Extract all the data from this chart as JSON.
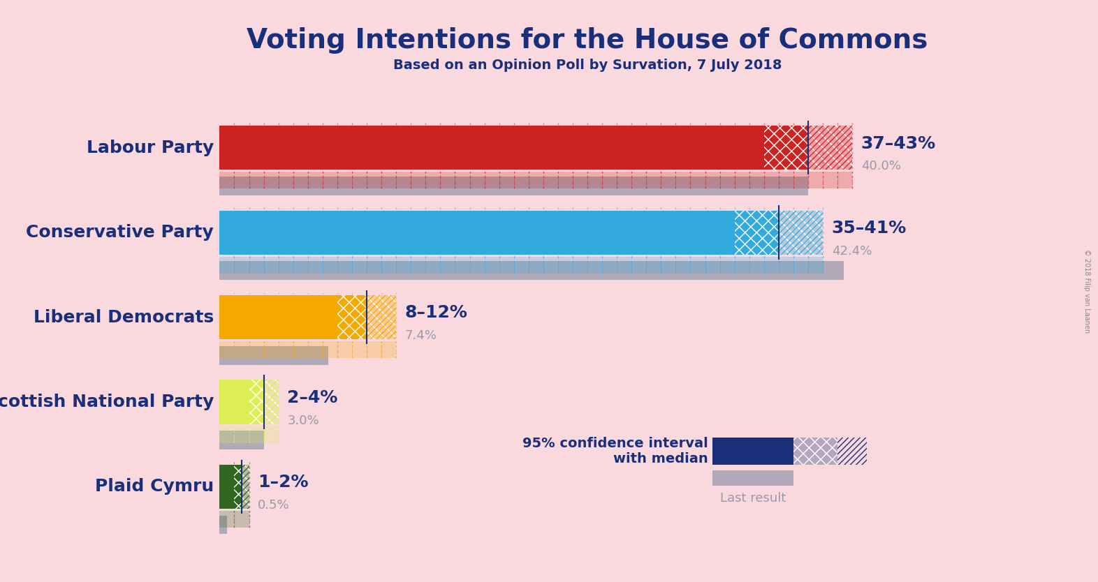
{
  "title": "Voting Intentions for the House of Commons",
  "subtitle": "Based on an Opinion Poll by Survation, 7 July 2018",
  "background_color": "#f9d9de",
  "parties": [
    "Labour Party",
    "Conservative Party",
    "Liberal Democrats",
    "Scottish National Party",
    "Plaid Cymru"
  ],
  "colors": [
    "#cc2222",
    "#33aadd",
    "#f5a800",
    "#ddee55",
    "#336622"
  ],
  "ci_low": [
    37,
    35,
    8,
    2,
    1
  ],
  "ci_high": [
    43,
    41,
    12,
    4,
    2
  ],
  "median": [
    40,
    38,
    10,
    3,
    1.5
  ],
  "last_result": [
    40.0,
    42.4,
    7.4,
    3.0,
    0.5
  ],
  "ci_labels": [
    "37–43%",
    "35–41%",
    "8–12%",
    "2–4%",
    "1–2%"
  ],
  "last_labels": [
    "40.0%",
    "42.4%",
    "7.4%",
    "3.0%",
    "0.5%"
  ],
  "xmax": 50,
  "title_color": "#1a2f7a",
  "label_color": "#1a2f7a",
  "last_color": "#9999aa",
  "copyright_text": "© 2018 Filip van Laanen"
}
